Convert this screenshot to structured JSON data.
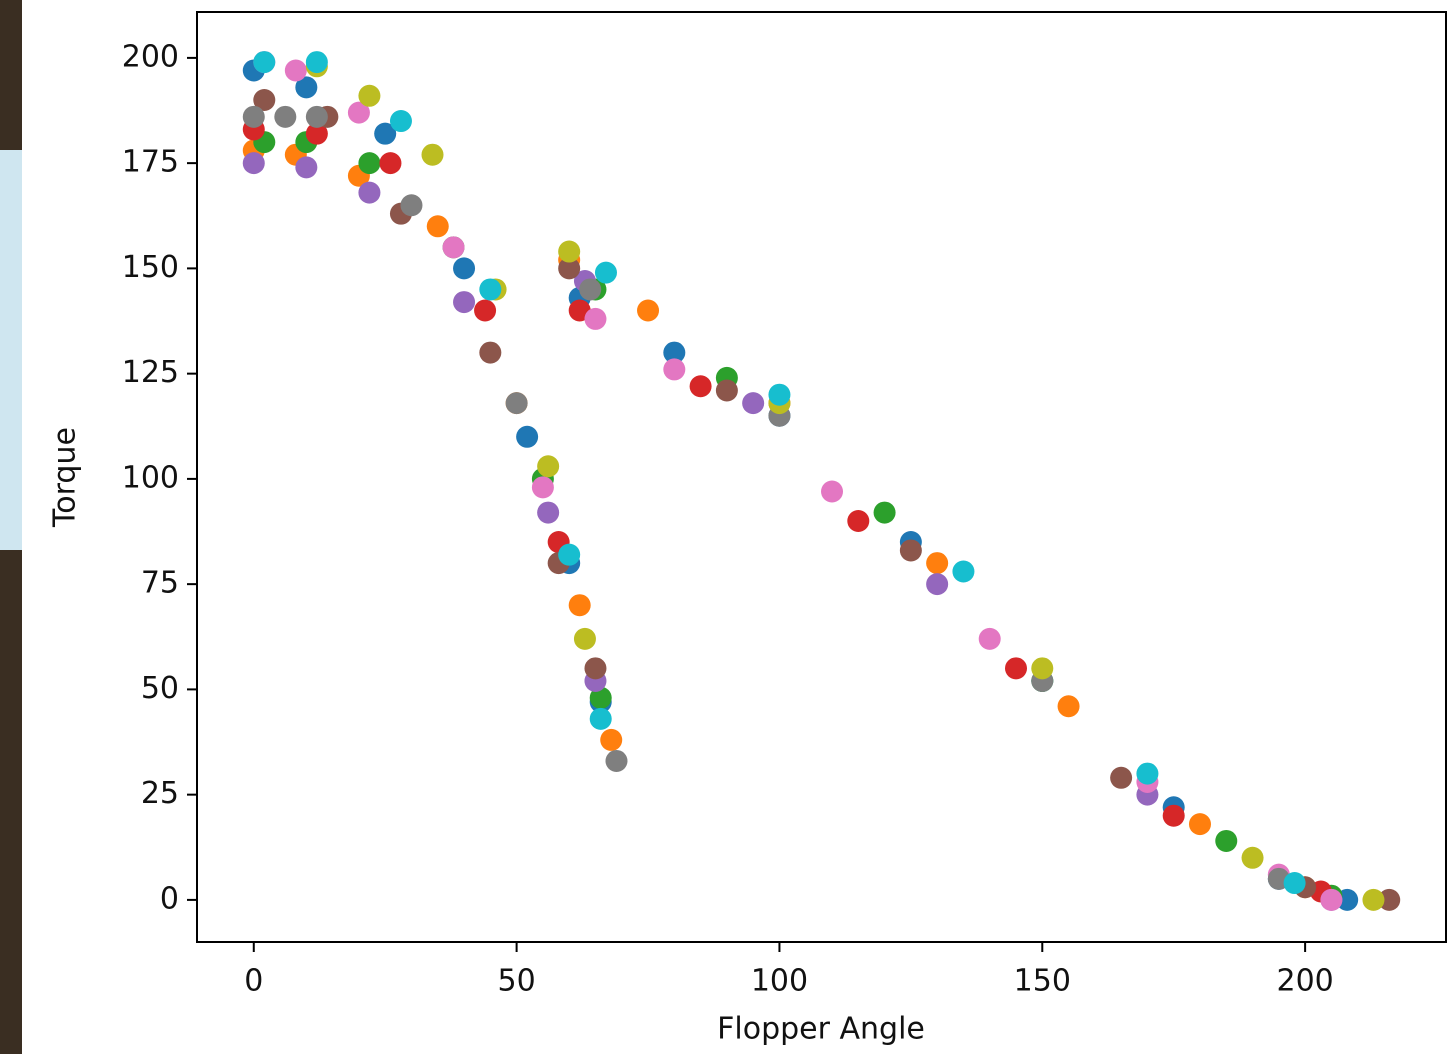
{
  "chart_data": {
    "type": "scatter",
    "xlabel": "Flopper Angle",
    "ylabel": "Torque",
    "xlim": [
      -10.8,
      226.8
    ],
    "ylim": [
      -10,
      210.9
    ],
    "xticks": [
      0,
      50,
      100,
      150,
      200
    ],
    "yticks": [
      0,
      25,
      50,
      75,
      100,
      125,
      150,
      175,
      200
    ],
    "grid": false,
    "series": [
      {
        "color": "#1f77b4",
        "x": [
          0,
          10,
          25,
          40,
          52,
          60,
          66,
          62,
          80,
          100,
          125,
          150,
          175,
          195,
          208
        ],
        "values": [
          197,
          193,
          182,
          150,
          110,
          80,
          47,
          143,
          130,
          115,
          85,
          52,
          22,
          5,
          0
        ]
      },
      {
        "color": "#ff7f0e",
        "x": [
          0,
          8,
          20,
          35,
          50,
          62,
          68,
          60,
          75,
          100,
          130,
          155,
          180,
          200
        ],
        "values": [
          178,
          177,
          172,
          160,
          118,
          70,
          38,
          152,
          140,
          118,
          80,
          46,
          18,
          3
        ]
      },
      {
        "color": "#2ca02c",
        "x": [
          2,
          10,
          22,
          38,
          55,
          66,
          65,
          90,
          120,
          150,
          185,
          205
        ],
        "values": [
          180,
          180,
          175,
          155,
          100,
          48,
          145,
          124,
          92,
          52,
          14,
          1
        ]
      },
      {
        "color": "#d62728",
        "x": [
          0,
          12,
          26,
          44,
          58,
          62,
          85,
          115,
          145,
          175,
          203
        ],
        "values": [
          183,
          182,
          175,
          140,
          85,
          140,
          122,
          90,
          55,
          20,
          2
        ]
      },
      {
        "color": "#9467bd",
        "x": [
          0,
          10,
          22,
          40,
          56,
          65,
          63,
          95,
          130,
          170,
          205
        ],
        "values": [
          175,
          174,
          168,
          142,
          92,
          52,
          147,
          118,
          75,
          25,
          0
        ]
      },
      {
        "color": "#8c564b",
        "x": [
          2,
          14,
          28,
          45,
          58,
          65,
          60,
          90,
          125,
          165,
          200,
          216
        ],
        "values": [
          190,
          186,
          163,
          130,
          80,
          55,
          150,
          121,
          83,
          29,
          3,
          0
        ]
      },
      {
        "color": "#e377c2",
        "x": [
          2,
          8,
          20,
          38,
          55,
          65,
          80,
          110,
          140,
          170,
          195,
          205
        ],
        "values": [
          199,
          197,
          187,
          155,
          98,
          138,
          126,
          97,
          62,
          28,
          6,
          0
        ]
      },
      {
        "color": "#7f7f7f",
        "x": [
          0,
          6,
          12,
          30,
          50,
          69,
          64,
          100,
          150,
          195
        ],
        "values": [
          186,
          186,
          186,
          165,
          118,
          33,
          145,
          115,
          52,
          5
        ]
      },
      {
        "color": "#bcbd22",
        "x": [
          12,
          22,
          34,
          46,
          56,
          63,
          60,
          100,
          150,
          190,
          213
        ],
        "values": [
          198,
          191,
          177,
          145,
          103,
          62,
          154,
          118,
          55,
          10,
          0
        ]
      },
      {
        "color": "#17becf",
        "x": [
          2,
          12,
          28,
          45,
          60,
          66,
          67,
          100,
          135,
          170,
          198
        ],
        "values": [
          199,
          199,
          185,
          145,
          82,
          43,
          149,
          120,
          78,
          30,
          4
        ]
      }
    ]
  }
}
